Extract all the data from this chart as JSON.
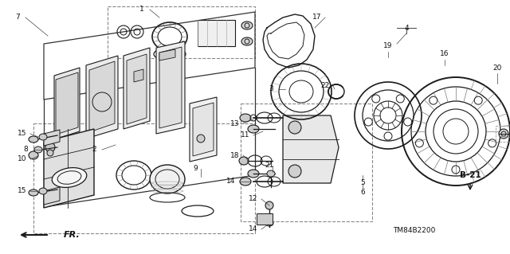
{
  "bg_color": "#ffffff",
  "line_color": "#1a1a1a",
  "fig_width": 6.4,
  "fig_height": 3.19,
  "dpi": 100,
  "code_label": "TM84B2200",
  "b21_label": "B-21",
  "fr_label": "FR."
}
